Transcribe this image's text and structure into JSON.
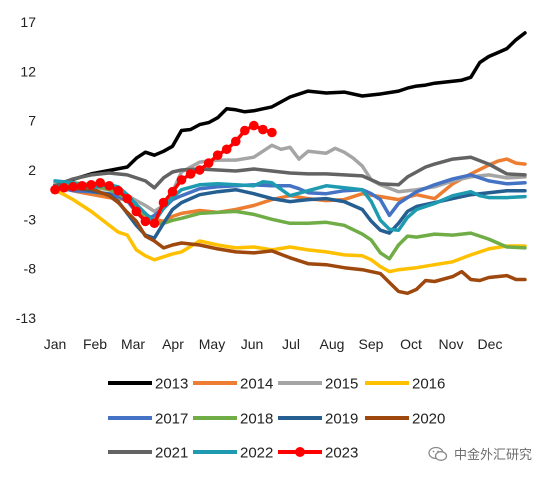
{
  "chart_data": {
    "type": "line",
    "title": "",
    "xlabel": "",
    "ylabel": "",
    "x_tick_labels": [
      "Jan",
      "Feb",
      "Mar",
      "Apr",
      "May",
      "Jun",
      "Jul",
      "Aug",
      "Sep",
      "Oct",
      "Nov",
      "Dec"
    ],
    "y_ticks": [
      17,
      12,
      7,
      2,
      -3,
      -8,
      -13
    ],
    "ylim": [
      -14,
      18
    ],
    "xlim": [
      0,
      52
    ],
    "grid": false,
    "legend_position": "bottom",
    "x_unit": "week of year",
    "series": [
      {
        "name": "2013",
        "color": "#000000",
        "x": [
          0,
          4,
          8,
          9,
          10,
          11,
          12,
          13,
          14,
          15,
          16,
          17,
          18,
          19,
          20,
          21,
          22,
          23,
          24,
          26,
          28,
          30,
          32,
          34,
          36,
          38,
          39,
          40,
          41,
          42,
          44,
          45,
          46,
          47,
          48,
          49,
          50,
          51,
          52
        ],
        "y": [
          0.5,
          1.6,
          2.3,
          3.2,
          3.8,
          3.5,
          3.9,
          4.4,
          6.0,
          6.1,
          6.6,
          6.8,
          7.3,
          8.2,
          8.1,
          7.9,
          8.0,
          8.2,
          8.4,
          9.4,
          10.0,
          9.8,
          9.9,
          9.5,
          9.7,
          10.0,
          10.3,
          10.5,
          10.6,
          10.8,
          11.0,
          11.1,
          11.4,
          12.9,
          13.5,
          13.9,
          14.3,
          15.2,
          15.9
        ]
      },
      {
        "name": "2014",
        "color": "#ED7D31",
        "x": [
          0,
          3,
          6,
          8,
          10,
          11,
          12,
          13,
          14,
          16,
          18,
          20,
          22,
          24,
          26,
          28,
          30,
          32,
          34,
          36,
          38,
          40,
          42,
          44,
          46,
          48,
          49,
          50,
          51,
          52
        ],
        "y": [
          0.3,
          -0.3,
          -0.8,
          -1.0,
          -2.5,
          -3.0,
          -3.2,
          -2.7,
          -2.4,
          -2.1,
          -2.3,
          -2.0,
          -1.6,
          -1.0,
          -0.6,
          -0.9,
          -1.1,
          -1.0,
          -0.4,
          -0.7,
          -1.0,
          -0.5,
          -0.9,
          0.6,
          1.6,
          2.5,
          2.9,
          3.1,
          2.7,
          2.6
        ]
      },
      {
        "name": "2015",
        "color": "#A5A5A5",
        "x": [
          0,
          3,
          6,
          8,
          10,
          11,
          12,
          13,
          14,
          16,
          18,
          20,
          22,
          24,
          25,
          26,
          27,
          28,
          30,
          31,
          32,
          33,
          34,
          35,
          36,
          38,
          40,
          42,
          44,
          46,
          48,
          50,
          52
        ],
        "y": [
          0.7,
          0.4,
          0.0,
          -0.6,
          -1.6,
          -2.2,
          -1.6,
          -0.2,
          1.8,
          2.8,
          3.0,
          3.0,
          3.3,
          4.5,
          4.1,
          4.3,
          3.1,
          3.9,
          3.7,
          4.2,
          3.8,
          3.2,
          2.4,
          1.0,
          0.5,
          -0.2,
          0.0,
          0.3,
          0.9,
          1.3,
          1.5,
          1.2,
          1.3
        ]
      },
      {
        "name": "2016",
        "color": "#FFC000",
        "x": [
          0,
          2,
          4,
          6,
          7,
          8,
          9,
          10,
          11,
          12,
          13,
          14,
          16,
          18,
          20,
          22,
          24,
          26,
          28,
          30,
          32,
          34,
          35,
          36,
          37,
          38,
          40,
          42,
          44,
          46,
          48,
          50,
          52
        ],
        "y": [
          0.0,
          -1.0,
          -2.2,
          -3.6,
          -4.3,
          -4.6,
          -6.1,
          -6.7,
          -7.1,
          -6.8,
          -6.5,
          -6.3,
          -5.2,
          -5.6,
          -5.9,
          -5.8,
          -6.1,
          -5.8,
          -6.1,
          -6.3,
          -6.6,
          -6.7,
          -7.1,
          -7.8,
          -8.3,
          -8.1,
          -7.9,
          -7.6,
          -7.3,
          -6.6,
          -6.0,
          -5.7,
          -5.7
        ]
      },
      {
        "name": "2017",
        "color": "#4472C4",
        "x": [
          0,
          2,
          4,
          6,
          7,
          8,
          9,
          10,
          11,
          12,
          13,
          14,
          16,
          18,
          20,
          22,
          24,
          26,
          27,
          28,
          30,
          32,
          34,
          35,
          36,
          37,
          38,
          40,
          42,
          44,
          46,
          48,
          50,
          52
        ],
        "y": [
          0.3,
          -0.1,
          -0.2,
          -0.4,
          -0.7,
          -1.1,
          -2.3,
          -3.1,
          -2.6,
          -1.9,
          -1.0,
          -0.6,
          0.1,
          0.3,
          0.4,
          0.5,
          0.4,
          0.4,
          0.1,
          -0.3,
          -0.4,
          -0.1,
          0.0,
          -0.4,
          -1.0,
          -2.6,
          -1.4,
          -0.2,
          0.5,
          1.1,
          1.5,
          0.9,
          0.6,
          0.7
        ]
      },
      {
        "name": "2018",
        "color": "#70AD47",
        "x": [
          0,
          2,
          4,
          6,
          7,
          8,
          9,
          10,
          11,
          12,
          13,
          14,
          16,
          18,
          20,
          22,
          24,
          26,
          28,
          30,
          32,
          34,
          35,
          36,
          37,
          38,
          39,
          40,
          42,
          44,
          46,
          48,
          50,
          52
        ],
        "y": [
          0.4,
          0.7,
          0.5,
          0.0,
          -0.4,
          -0.9,
          -1.8,
          -3.1,
          -3.5,
          -3.4,
          -3.1,
          -2.9,
          -2.4,
          -2.3,
          -2.2,
          -2.5,
          -3.0,
          -3.4,
          -3.4,
          -3.3,
          -3.6,
          -4.5,
          -5.1,
          -6.4,
          -7.0,
          -5.6,
          -4.7,
          -4.8,
          -4.5,
          -4.6,
          -4.4,
          -5.0,
          -5.8,
          -5.9
        ]
      },
      {
        "name": "2019",
        "color": "#255E91",
        "x": [
          0,
          2,
          4,
          6,
          7,
          8,
          9,
          10,
          11,
          12,
          13,
          14,
          16,
          18,
          20,
          22,
          24,
          26,
          28,
          30,
          32,
          34,
          35,
          36,
          37,
          38,
          39,
          40,
          42,
          44,
          46,
          48,
          50,
          52
        ],
        "y": [
          0.4,
          0.2,
          -0.1,
          -0.5,
          -1.2,
          -2.4,
          -3.6,
          -4.6,
          -4.9,
          -3.4,
          -2.0,
          -1.3,
          -0.5,
          -0.2,
          0.0,
          -0.4,
          -0.9,
          -1.2,
          -1.0,
          -0.9,
          -1.2,
          -2.0,
          -3.2,
          -4.1,
          -4.4,
          -3.4,
          -2.2,
          -1.7,
          -1.3,
          -0.9,
          -0.5,
          -0.3,
          -0.1,
          -0.1
        ]
      },
      {
        "name": "2020",
        "color": "#9E480E",
        "x": [
          0,
          2,
          4,
          6,
          7,
          8,
          9,
          10,
          11,
          12,
          13,
          14,
          16,
          18,
          20,
          22,
          24,
          26,
          28,
          30,
          32,
          34,
          36,
          37,
          38,
          39,
          40,
          41,
          42,
          44,
          45,
          46,
          47,
          48,
          50,
          51,
          52
        ],
        "y": [
          0.2,
          0.1,
          0.1,
          -0.6,
          -1.3,
          -2.3,
          -3.2,
          -4.7,
          -5.2,
          -5.9,
          -5.6,
          -5.4,
          -5.6,
          -6.0,
          -6.3,
          -6.4,
          -6.2,
          -6.9,
          -7.5,
          -7.6,
          -7.9,
          -8.1,
          -8.5,
          -9.4,
          -10.3,
          -10.5,
          -10.1,
          -9.2,
          -9.3,
          -8.8,
          -8.3,
          -9.1,
          -9.2,
          -8.9,
          -8.7,
          -9.1,
          -9.1
        ]
      },
      {
        "name": "2021",
        "color": "#636363",
        "x": [
          0,
          2,
          4,
          6,
          8,
          10,
          11,
          12,
          13,
          14,
          16,
          18,
          20,
          22,
          24,
          26,
          28,
          30,
          32,
          34,
          36,
          38,
          39,
          40,
          41,
          42,
          44,
          46,
          48,
          50,
          52
        ],
        "y": [
          0.4,
          1.1,
          1.5,
          1.7,
          1.5,
          0.9,
          0.2,
          1.2,
          1.8,
          2.0,
          2.1,
          2.0,
          1.9,
          2.1,
          1.9,
          1.7,
          1.6,
          1.6,
          1.5,
          1.4,
          0.6,
          0.5,
          1.3,
          1.8,
          2.3,
          2.6,
          3.1,
          3.3,
          2.6,
          1.6,
          1.5
        ]
      },
      {
        "name": "2022",
        "color": "#1E9BB0",
        "x": [
          0,
          2,
          4,
          6,
          7,
          8,
          9,
          10,
          11,
          12,
          13,
          14,
          16,
          18,
          20,
          22,
          23,
          24,
          26,
          28,
          30,
          32,
          34,
          35,
          36,
          37,
          38,
          39,
          40,
          42,
          44,
          46,
          47,
          48,
          50,
          52
        ],
        "y": [
          0.9,
          0.7,
          0.2,
          0.5,
          0.3,
          -0.5,
          -1.5,
          -2.4,
          -3.2,
          -1.9,
          -0.8,
          0.0,
          0.5,
          0.6,
          0.5,
          0.4,
          0.8,
          0.7,
          -0.6,
          -0.1,
          0.4,
          0.2,
          0.0,
          -1.2,
          -3.1,
          -4.0,
          -4.1,
          -2.8,
          -2.0,
          -1.4,
          -0.6,
          -0.2,
          -0.6,
          -0.8,
          -0.8,
          -0.7
        ]
      },
      {
        "name": "2023",
        "color": "#FF0000",
        "markers": true,
        "x": [
          0,
          1,
          2,
          3,
          4,
          5,
          6,
          7,
          8,
          9,
          10,
          11,
          12,
          13,
          14,
          15,
          16,
          17,
          18,
          19,
          20,
          21,
          22,
          23,
          24
        ],
        "y": [
          0.0,
          0.2,
          0.3,
          0.4,
          0.5,
          0.7,
          0.4,
          -0.1,
          -0.9,
          -2.2,
          -3.2,
          -3.4,
          -1.3,
          -0.2,
          1.0,
          1.6,
          2.0,
          2.7,
          3.5,
          4.1,
          4.9,
          6.0,
          6.5,
          6.1,
          5.8
        ]
      }
    ]
  },
  "watermark": {
    "text": "中金外汇研究",
    "icon": "wechat-icon"
  }
}
